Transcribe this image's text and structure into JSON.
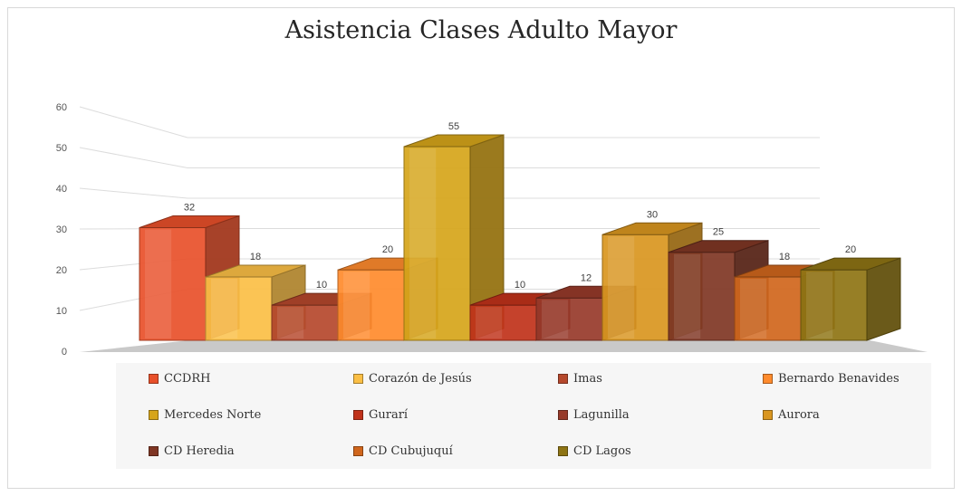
{
  "chart_data": {
    "type": "bar",
    "title": "Asistencia Clases Adulto Mayor",
    "categories": [
      "CCDRH",
      "Corazón de Jesús",
      "Imas",
      "Bernardo Benavides",
      "Mercedes Norte",
      "Gurarí",
      "Lagunilla",
      "Aurora",
      "CD Heredia",
      "CD Cubujuquí",
      "CD Lagos"
    ],
    "values": [
      32,
      18,
      10,
      20,
      55,
      10,
      12,
      30,
      25,
      18,
      20
    ],
    "data_labels": [
      "32",
      "18",
      "10",
      "20",
      "55",
      "10",
      "12",
      "30",
      "25",
      "18",
      "20"
    ],
    "colors": [
      "#e8502a",
      "#fbbf45",
      "#b5482c",
      "#ff8b2d",
      "#d6a51a",
      "#c0321a",
      "#973a2a",
      "#d99620",
      "#7f3624",
      "#d0661c",
      "#8e7414"
    ],
    "y_ticks": [
      "0",
      "10",
      "20",
      "30",
      "40",
      "50",
      "60"
    ],
    "ylim": [
      0,
      60
    ],
    "grid": true,
    "style": "3d-clustered-column",
    "legend_position": "bottom",
    "xlabel": "",
    "ylabel": ""
  }
}
